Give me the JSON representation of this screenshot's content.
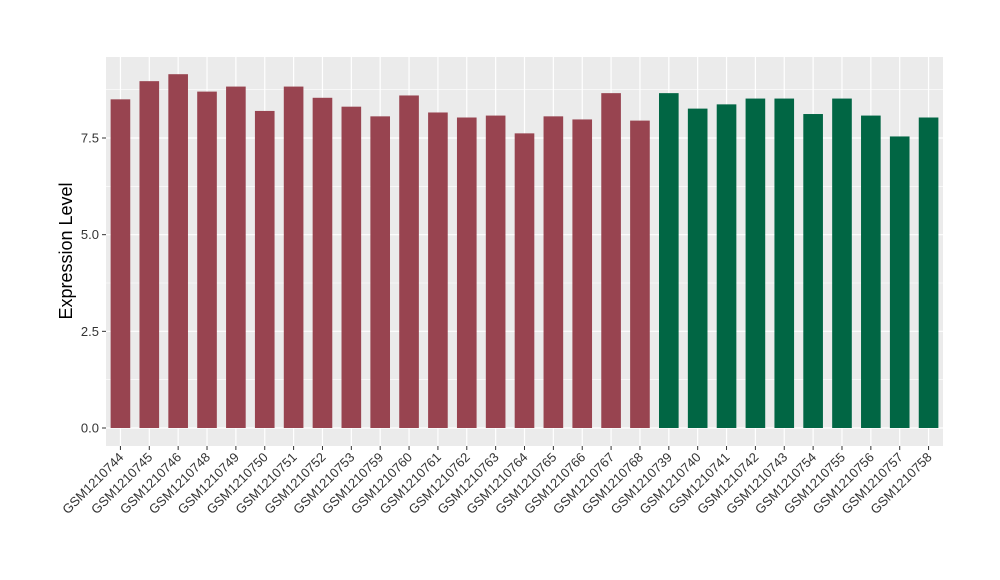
{
  "chart_data": {
    "type": "bar",
    "ylabel": "Expression Level",
    "xlabel": "",
    "ylim": [
      0,
      9.6
    ],
    "yticks": [
      0.0,
      2.5,
      5.0,
      7.5
    ],
    "ytick_labels": [
      "0.0",
      "2.5",
      "5.0",
      "7.5"
    ],
    "grid": true,
    "categories": [
      "GSM1210744",
      "GSM1210745",
      "GSM1210746",
      "GSM1210748",
      "GSM1210749",
      "GSM1210750",
      "GSM1210751",
      "GSM1210752",
      "GSM1210753",
      "GSM1210759",
      "GSM1210760",
      "GSM1210761",
      "GSM1210762",
      "GSM1210763",
      "GSM1210764",
      "GSM1210765",
      "GSM1210766",
      "GSM1210767",
      "GSM1210768",
      "GSM1210739",
      "GSM1210740",
      "GSM1210741",
      "GSM1210742",
      "GSM1210743",
      "GSM1210754",
      "GSM1210755",
      "GSM1210756",
      "GSM1210757",
      "GSM1210758"
    ],
    "values": [
      8.5,
      8.97,
      9.15,
      8.7,
      8.83,
      8.2,
      8.83,
      8.54,
      8.31,
      8.06,
      8.6,
      8.16,
      8.03,
      8.08,
      7.62,
      8.06,
      7.98,
      8.66,
      7.95,
      8.66,
      8.26,
      8.37,
      8.52,
      8.52,
      8.12,
      8.52,
      8.08,
      7.54,
      8.03
    ],
    "groups": [
      0,
      0,
      0,
      0,
      0,
      0,
      0,
      0,
      0,
      0,
      0,
      0,
      0,
      0,
      0,
      0,
      0,
      0,
      0,
      1,
      1,
      1,
      1,
      1,
      1,
      1,
      1,
      1,
      1
    ],
    "group_colors": [
      "#984450",
      "#016644"
    ],
    "panel_background": "#ebebeb",
    "grid_color": "#ffffff"
  }
}
